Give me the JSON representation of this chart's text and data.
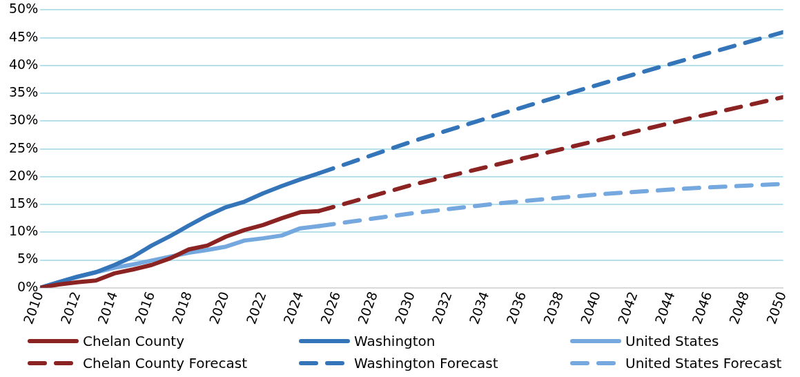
{
  "chart_data": {
    "type": "line",
    "xlim": [
      2010,
      2050
    ],
    "xticks": [
      2010,
      2012,
      2014,
      2016,
      2018,
      2020,
      2022,
      2024,
      2026,
      2028,
      2030,
      2032,
      2034,
      2036,
      2038,
      2040,
      2042,
      2044,
      2046,
      2048,
      2050
    ],
    "ylim": [
      0,
      50
    ],
    "yticks": [
      {
        "value": 0,
        "label": "0%"
      },
      {
        "value": 5,
        "label": "5%"
      },
      {
        "value": 10,
        "label": "10%"
      },
      {
        "value": 15,
        "label": "15%"
      },
      {
        "value": 20,
        "label": "20%"
      },
      {
        "value": 25,
        "label": "25%"
      },
      {
        "value": 30,
        "label": "30%"
      },
      {
        "value": 35,
        "label": "35%"
      },
      {
        "value": 40,
        "label": "40%"
      },
      {
        "value": 45,
        "label": "45%"
      },
      {
        "value": 50,
        "label": "50%"
      }
    ],
    "grid": "y",
    "legend": "bottom",
    "marker": "none",
    "series": [
      {
        "name": "Chelan County",
        "color": "#8b2323",
        "line_style": "solid",
        "x": [
          2010,
          2011,
          2012,
          2013,
          2014,
          2015,
          2016,
          2017,
          2018,
          2019,
          2020,
          2021,
          2022,
          2023,
          2024,
          2025
        ],
        "values": [
          0,
          0.6,
          1.0,
          1.3,
          2.6,
          3.3,
          4.1,
          5.3,
          6.9,
          7.6,
          9.2,
          10.4,
          11.3,
          12.5,
          13.6,
          13.8
        ]
      },
      {
        "name": "Washington",
        "color": "#3474b8",
        "line_style": "solid",
        "x": [
          2010,
          2011,
          2012,
          2013,
          2014,
          2015,
          2016,
          2017,
          2018,
          2019,
          2020,
          2021,
          2022,
          2023,
          2024,
          2025
        ],
        "values": [
          0,
          1.0,
          2.0,
          2.8,
          4.1,
          5.6,
          7.6,
          9.3,
          11.2,
          13.0,
          14.5,
          15.5,
          17.0,
          18.3,
          19.5,
          20.6
        ]
      },
      {
        "name": "United States",
        "color": "#74a8de",
        "line_style": "solid",
        "x": [
          2010,
          2011,
          2012,
          2013,
          2014,
          2015,
          2016,
          2017,
          2018,
          2019,
          2020,
          2021,
          2022,
          2023,
          2024,
          2025
        ],
        "values": [
          0,
          1.0,
          1.9,
          2.8,
          3.6,
          4.2,
          4.9,
          5.6,
          6.3,
          6.8,
          7.4,
          8.5,
          8.9,
          9.4,
          10.7,
          11.1
        ]
      },
      {
        "name": "Chelan County Forecast",
        "color": "#8b2323",
        "line_style": "dashed",
        "x": [
          2025,
          2030,
          2035,
          2040,
          2045,
          2050
        ],
        "values": [
          13.8,
          18.5,
          22.5,
          26.5,
          30.5,
          34.3
        ]
      },
      {
        "name": "Washington Forecast",
        "color": "#3474b8",
        "line_style": "dashed",
        "x": [
          2025,
          2030,
          2035,
          2040,
          2045,
          2050
        ],
        "values": [
          20.6,
          26.3,
          31.5,
          36.5,
          41.3,
          46.0
        ]
      },
      {
        "name": "United States Forecast",
        "color": "#74a8de",
        "line_style": "dashed",
        "x": [
          2025,
          2030,
          2035,
          2040,
          2045,
          2050
        ],
        "values": [
          11.1,
          13.4,
          15.3,
          16.8,
          17.9,
          18.7
        ]
      }
    ]
  }
}
